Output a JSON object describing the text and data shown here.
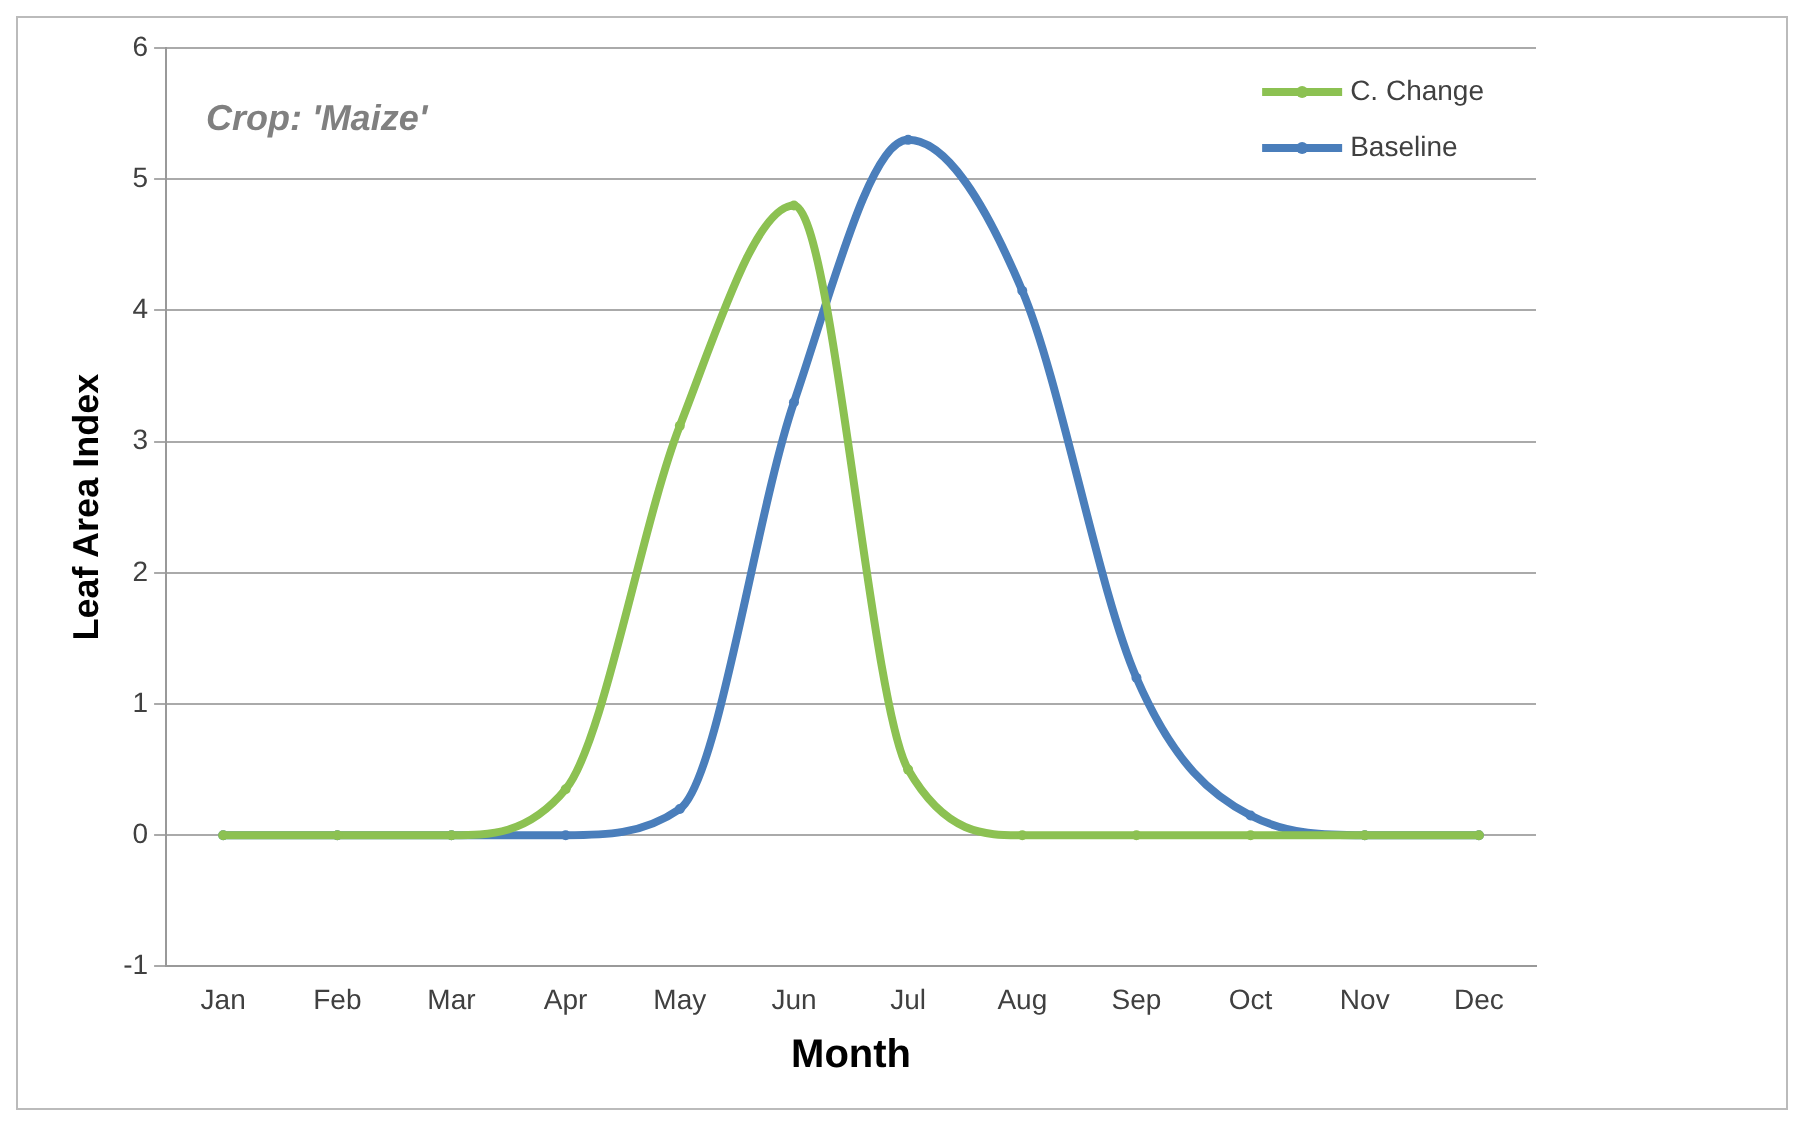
{
  "chart_data": {
    "type": "line",
    "xlabel": "Month",
    "ylabel": "Leaf Area Index",
    "annotations": [
      "Crop: 'Maize'"
    ],
    "categories": [
      "Jan",
      "Feb",
      "Mar",
      "Apr",
      "May",
      "Jun",
      "Jul",
      "Aug",
      "Sep",
      "Oct",
      "Nov",
      "Dec"
    ],
    "series": [
      {
        "name": "C. Change",
        "color": "#8cc152",
        "values": [
          0,
          0,
          0,
          0.35,
          3.12,
          4.8,
          0.5,
          0,
          0,
          0,
          0,
          0
        ]
      },
      {
        "name": "Baseline",
        "color": "#4a7ebb",
        "values": [
          0,
          0,
          0,
          0,
          0.2,
          3.3,
          5.3,
          4.15,
          1.2,
          0.15,
          0,
          0
        ]
      }
    ],
    "ylim": [
      -1,
      6
    ],
    "yticks": [
      -1,
      0,
      1,
      2,
      3,
      4,
      5,
      6
    ],
    "grid": "y",
    "legend": "top right",
    "marker": "circle",
    "line_style": "solid"
  }
}
